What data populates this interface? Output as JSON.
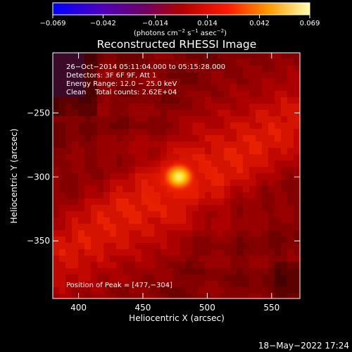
{
  "chart_data": {
    "type": "heatmap",
    "title": "Reconstructed RHESSI Image",
    "xlabel": "Heliocentric X (arcsec)",
    "ylabel": "Heliocentric Y (arcsec)",
    "xlim": [
      380,
      572
    ],
    "ylim": [
      -395,
      -203
    ],
    "x_ticks": [
      400,
      450,
      500,
      550
    ],
    "x_tick_labels": [
      "400",
      "450",
      "500",
      "550"
    ],
    "y_ticks": [
      -250,
      -300,
      -350
    ],
    "y_tick_labels": [
      "−250",
      "−300",
      "−350"
    ],
    "colorbar": {
      "range": [
        -0.069,
        0.069
      ],
      "ticks": [
        -0.069,
        -0.042,
        -0.014,
        0.014,
        0.042,
        0.069
      ],
      "tick_labels": [
        "−0.069",
        "−0.042",
        "−0.014",
        "0.014",
        "0.042",
        "0.069"
      ],
      "colors": [
        "#0000ff",
        "#5b0090",
        "#8a0000",
        "#ff1400",
        "#ffa000",
        "#ffffb4"
      ]
    },
    "info_lines": [
      "26−Oct−2014 05:11:04.000 to 05:15:28.000",
      "Detectors: 3F 6F 9F, Att 1",
      "Energy Range: 12.0 − 25.0 keV",
      "Clean    Total counts: 2.62E+04"
    ],
    "peak_text": "Position of Peak = [477,−304]",
    "peak": {
      "x": 477,
      "y": -304,
      "value": 0.069
    },
    "grid": false
  },
  "timestamp": "18−May−2022 17:24"
}
